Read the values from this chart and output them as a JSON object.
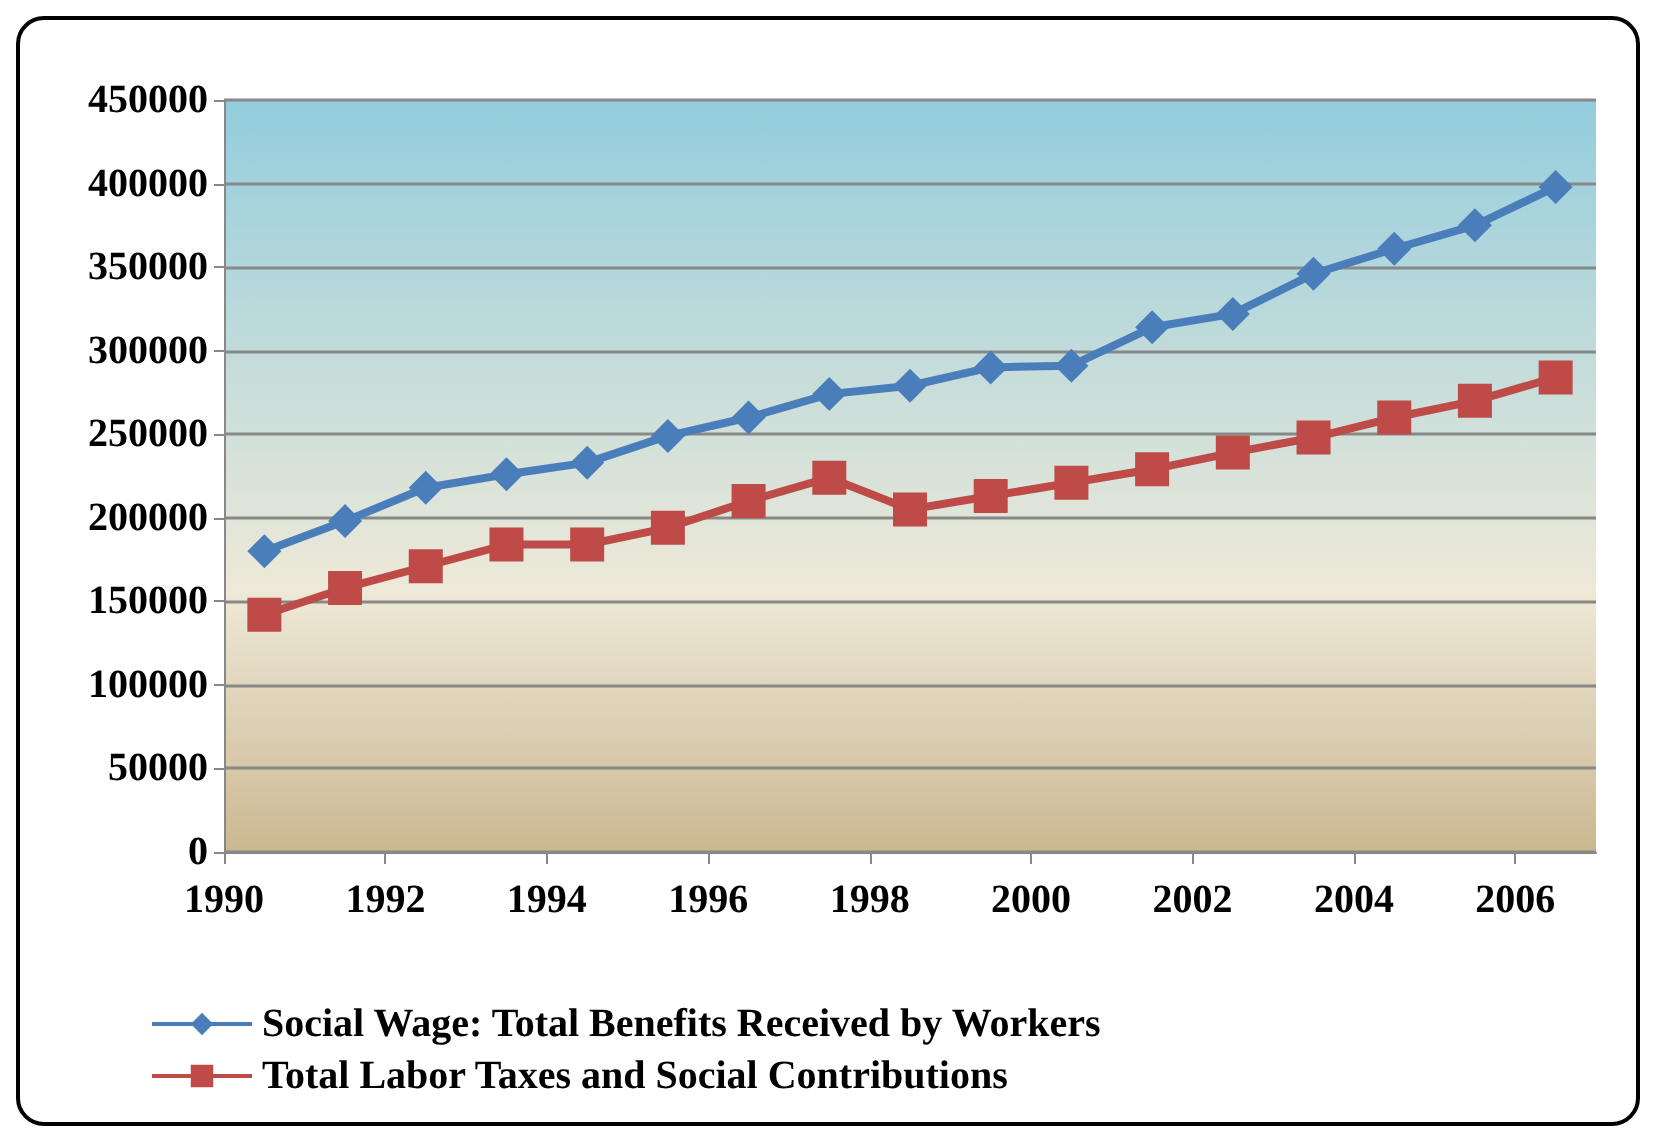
{
  "chart_data": {
    "type": "line",
    "x": [
      1990.5,
      1991.5,
      1992.5,
      1993.5,
      1994.5,
      1995.5,
      1996.5,
      1997.5,
      1998.5,
      1999.5,
      2000.5,
      2001.5,
      2002.5,
      2003.5,
      2004.5,
      2005.5,
      2006.5
    ],
    "series": [
      {
        "name": "Social Wage: Total Benefits Received by Workers",
        "color": "#4a7ebb",
        "marker": "diamond",
        "values": [
          180000,
          198000,
          218000,
          226000,
          233000,
          249000,
          260000,
          274000,
          279000,
          290000,
          291000,
          314000,
          322000,
          346000,
          361000,
          375000,
          398000
        ]
      },
      {
        "name": "Total Labor Taxes and Social Contributions",
        "color": "#be4b48",
        "marker": "square",
        "values": [
          142000,
          158000,
          171000,
          184000,
          184000,
          194000,
          210000,
          224000,
          205000,
          213000,
          221000,
          229000,
          239000,
          248000,
          260000,
          270000,
          284000
        ]
      }
    ],
    "xlim": [
      1990,
      2007
    ],
    "xticks": [
      1990,
      1992,
      1994,
      1996,
      1998,
      2000,
      2002,
      2004,
      2006
    ],
    "ylim": [
      0,
      450000
    ],
    "yticks": [
      0,
      50000,
      100000,
      150000,
      200000,
      250000,
      300000,
      350000,
      400000,
      450000
    ],
    "grid": "y",
    "legend": "bottom",
    "line_style": "solid"
  }
}
